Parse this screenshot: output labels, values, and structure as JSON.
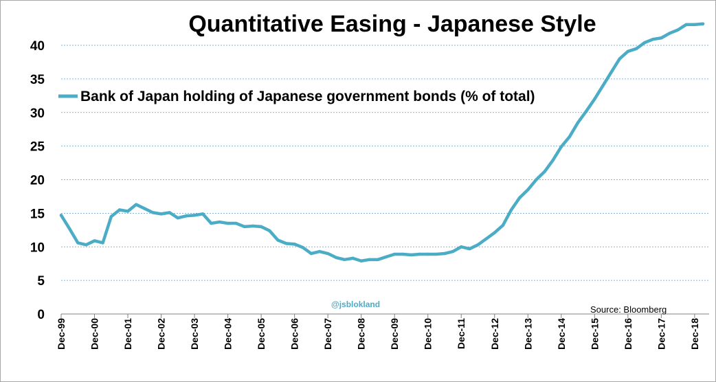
{
  "chart_data": {
    "type": "line",
    "title": "Quantitative Easing - Japanese Style",
    "xlabel": "",
    "ylabel": "",
    "ylim": [
      0,
      43
    ],
    "yticks": [
      0,
      5,
      10,
      15,
      20,
      25,
      30,
      35,
      40
    ],
    "xtick_labels": [
      "Dec-99",
      "Dec-00",
      "Dec-01",
      "Dec-02",
      "Dec-03",
      "Dec-04",
      "Dec-05",
      "Dec-06",
      "Dec-07",
      "Dec-08",
      "Dec-09",
      "Dec-10",
      "Dec-11",
      "Dec-12",
      "Dec-13",
      "Dec-14",
      "Dec-15",
      "Dec-16",
      "Dec-17",
      "Dec-18"
    ],
    "grid": "horizontal dashed",
    "legend_position": "top-left",
    "series": [
      {
        "name": "Bank of Japan holding of Japanese government bonds (% of total)",
        "color": "#4bacc6",
        "x": [
          "Dec-99",
          "Mar-00",
          "Jun-00",
          "Sep-00",
          "Dec-00",
          "Mar-01",
          "Jun-01",
          "Sep-01",
          "Dec-01",
          "Mar-02",
          "Jun-02",
          "Sep-02",
          "Dec-02",
          "Mar-03",
          "Jun-03",
          "Sep-03",
          "Dec-03",
          "Mar-04",
          "Jun-04",
          "Sep-04",
          "Dec-04",
          "Mar-05",
          "Jun-05",
          "Sep-05",
          "Dec-05",
          "Mar-06",
          "Jun-06",
          "Sep-06",
          "Dec-06",
          "Mar-07",
          "Jun-07",
          "Sep-07",
          "Dec-07",
          "Mar-08",
          "Jun-08",
          "Sep-08",
          "Dec-08",
          "Mar-09",
          "Jun-09",
          "Sep-09",
          "Dec-09",
          "Mar-10",
          "Jun-10",
          "Sep-10",
          "Dec-10",
          "Mar-11",
          "Jun-11",
          "Sep-11",
          "Dec-11",
          "Mar-12",
          "Jun-12",
          "Sep-12",
          "Dec-12",
          "Mar-13",
          "Jun-13",
          "Sep-13",
          "Dec-13",
          "Mar-14",
          "Jun-14",
          "Sep-14",
          "Dec-14",
          "Mar-15",
          "Jun-15",
          "Sep-15",
          "Dec-15",
          "Mar-16",
          "Jun-16",
          "Sep-16",
          "Dec-16",
          "Mar-17",
          "Jun-17",
          "Sep-17",
          "Dec-17",
          "Mar-18",
          "Jun-18",
          "Sep-18",
          "Dec-18",
          "Mar-19"
        ],
        "values": [
          14.7,
          12.7,
          10.6,
          10.3,
          10.9,
          10.6,
          14.5,
          15.5,
          15.3,
          16.3,
          15.7,
          15.1,
          14.9,
          15.1,
          14.3,
          14.6,
          14.7,
          14.9,
          13.5,
          13.7,
          13.5,
          13.5,
          13.0,
          13.1,
          13.0,
          12.4,
          11.0,
          10.5,
          10.4,
          9.9,
          9.0,
          9.3,
          9.0,
          8.4,
          8.1,
          8.3,
          7.9,
          8.1,
          8.1,
          8.5,
          8.9,
          8.9,
          8.8,
          8.9,
          8.9,
          8.9,
          9.0,
          9.3,
          10.0,
          9.7,
          10.3,
          11.2,
          12.1,
          13.2,
          15.5,
          17.3,
          18.5,
          20.0,
          21.2,
          22.9,
          24.9,
          26.4,
          28.5,
          30.2,
          32.0,
          34.0,
          36.0,
          38.0,
          39.1,
          39.5,
          40.4,
          40.9,
          41.1,
          41.8,
          42.3,
          43.1,
          43.1,
          43.2
        ]
      }
    ],
    "annotations": {
      "watermark": "@jsblokland",
      "source": "Source: Bloomberg"
    }
  }
}
